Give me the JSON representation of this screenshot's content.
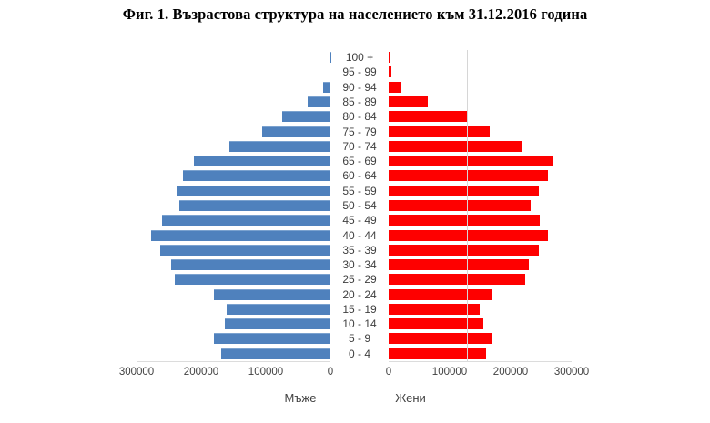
{
  "title": "Фиг. 1. Възрастова структура на населението към 31.12.2016 година",
  "chart_data": {
    "type": "bar",
    "subtype": "population-pyramid",
    "orientation": "horizontal",
    "title": "Фиг. 1. Възрастова структура на населението към 31.12.2016 година",
    "categories_top_to_bottom": [
      "100 +",
      "95 - 99",
      "90 - 94",
      "85 - 89",
      "80 - 84",
      "75 - 79",
      "70 - 74",
      "65 - 69",
      "60 - 64",
      "55 - 59",
      "50 - 54",
      "45 - 49",
      "40 - 44",
      "35 - 39",
      "30 - 34",
      "25 - 29",
      "20 - 24",
      "15 - 19",
      "10 - 14",
      "5 - 9",
      "0 - 4"
    ],
    "series": [
      {
        "name": "Мъже",
        "side": "left",
        "color": "#4f81bd",
        "values": [
          300,
          800,
          11000,
          35000,
          75000,
          106000,
          156000,
          211000,
          228000,
          238000,
          234000,
          260000,
          277000,
          263000,
          247000,
          241000,
          181000,
          160000,
          164000,
          180000,
          169000
        ]
      },
      {
        "name": "Жени",
        "side": "right",
        "color": "#fe0000",
        "values": [
          2500,
          4500,
          21000,
          64000,
          130000,
          166000,
          219000,
          268000,
          261000,
          246000,
          233000,
          248000,
          261000,
          246000,
          230000,
          224000,
          169000,
          149000,
          155000,
          170000,
          160000
        ]
      }
    ],
    "x_axis": {
      "max": 300000,
      "left_axis_reversed": true,
      "ticks_left": [
        "300000",
        "200000",
        "100000",
        "0"
      ],
      "ticks_right": [
        "0",
        "100000",
        "200000",
        "300000"
      ]
    },
    "axis_titles": {
      "left": "Мъже",
      "right": "Жени"
    },
    "grid": "off",
    "legend_position": "below-as-axis-titles",
    "colors": {
      "male_bar": "#4f81bd",
      "female_bar": "#fe0000",
      "axis_line": "#d6d6d6",
      "label_text": "#404040",
      "title_text": "#000000"
    }
  }
}
